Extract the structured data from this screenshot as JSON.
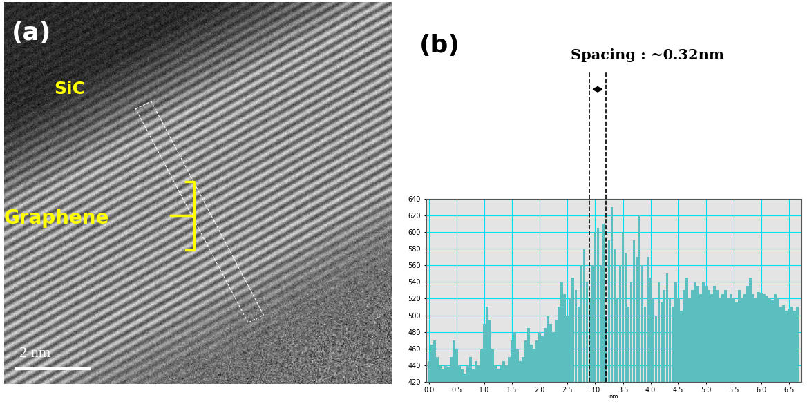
{
  "chart_data": {
    "type": "bar",
    "panel_label": "(b)",
    "annotation": "Spacing : ~0.32nm",
    "xlabel": "nm",
    "color": "#5cbfbf",
    "grid": true,
    "spacing_lines": [
      2.9,
      3.19
    ],
    "x": [
      0.0,
      0.05,
      0.1,
      0.15,
      0.2,
      0.25,
      0.3,
      0.35,
      0.4,
      0.45,
      0.5,
      0.55,
      0.6,
      0.65,
      0.7,
      0.75,
      0.8,
      0.85,
      0.9,
      0.95,
      1.0,
      1.05,
      1.1,
      1.15,
      1.2,
      1.25,
      1.3,
      1.35,
      1.4,
      1.45,
      1.5,
      1.55,
      1.6,
      1.65,
      1.7,
      1.75,
      1.8,
      1.85,
      1.9,
      1.95,
      2.0,
      2.05,
      2.1,
      2.15,
      2.2,
      2.25,
      2.3,
      2.35,
      2.4,
      2.45,
      2.5,
      2.55,
      2.6,
      2.65,
      2.7,
      2.75,
      2.8,
      2.85,
      2.9,
      2.95,
      3.0,
      3.05,
      3.1,
      3.15,
      3.2,
      3.25,
      3.3,
      3.35,
      3.4,
      3.45,
      3.5,
      3.55,
      3.6,
      3.65,
      3.7,
      3.75,
      3.8,
      3.85,
      3.9,
      3.95,
      4.0,
      4.05,
      4.1,
      4.15,
      4.2,
      4.25,
      4.3,
      4.35,
      4.4,
      4.45,
      4.5,
      4.55,
      4.6,
      4.65,
      4.7,
      4.75,
      4.8,
      4.85,
      4.9,
      4.95,
      5.0,
      5.05,
      5.1,
      5.15,
      5.2,
      5.25,
      5.3,
      5.35,
      5.4,
      5.45,
      5.5,
      5.55,
      5.6,
      5.65,
      5.7,
      5.75,
      5.8,
      5.85,
      5.9,
      5.95,
      6.0,
      6.05,
      6.1,
      6.15,
      6.2,
      6.25,
      6.3,
      6.35,
      6.4,
      6.45,
      6.5,
      6.55,
      6.6,
      6.65
    ],
    "values": [
      445,
      465,
      470,
      450,
      440,
      435,
      440,
      438,
      450,
      470,
      460,
      440,
      435,
      430,
      440,
      450,
      435,
      445,
      440,
      460,
      490,
      510,
      495,
      460,
      440,
      435,
      440,
      445,
      440,
      450,
      470,
      480,
      460,
      445,
      450,
      470,
      485,
      465,
      460,
      470,
      480,
      475,
      485,
      500,
      490,
      480,
      495,
      510,
      540,
      525,
      500,
      520,
      545,
      530,
      510,
      560,
      580,
      540,
      520,
      560,
      600,
      605,
      560,
      610,
      500,
      590,
      630,
      580,
      520,
      560,
      600,
      575,
      510,
      540,
      590,
      570,
      620,
      560,
      510,
      570,
      545,
      520,
      500,
      540,
      515,
      530,
      550,
      520,
      510,
      540,
      520,
      505,
      530,
      545,
      520,
      530,
      540,
      535,
      525,
      540,
      535,
      530,
      525,
      535,
      530,
      520,
      525,
      530,
      520,
      525,
      520,
      515,
      530,
      520,
      525,
      535,
      545,
      525,
      520,
      528,
      527,
      525,
      524,
      520,
      518,
      525,
      520,
      510,
      512,
      505,
      508,
      510,
      505,
      510
    ],
    "xlim": [
      -0.05,
      6.72
    ],
    "ylim": [
      420,
      640
    ],
    "xticks": [
      {
        "value": 0.0,
        "label": "0.0"
      },
      {
        "value": 0.5,
        "label": "0.5"
      },
      {
        "value": 1.0,
        "label": "1.0"
      },
      {
        "value": 1.5,
        "label": "1.5"
      },
      {
        "value": 2.0,
        "label": "2.0"
      },
      {
        "value": 2.5,
        "label": "2.5"
      },
      {
        "value": 3.0,
        "label": "3.0"
      },
      {
        "value": 3.5,
        "label": "3.5"
      },
      {
        "value": 4.0,
        "label": "4.0"
      },
      {
        "value": 4.5,
        "label": "4.5"
      },
      {
        "value": 5.0,
        "label": "5.0"
      },
      {
        "value": 5.5,
        "label": "5.5"
      },
      {
        "value": 6.0,
        "label": "6.0"
      },
      {
        "value": 6.5,
        "label": "6.5"
      }
    ],
    "yticks": [
      420,
      440,
      460,
      480,
      500,
      520,
      540,
      560,
      580,
      600,
      620,
      640
    ]
  },
  "image_panel": {
    "label": "(a)",
    "layers": [
      "SiC",
      "Graphene"
    ],
    "scale_bar": "2 nm"
  }
}
